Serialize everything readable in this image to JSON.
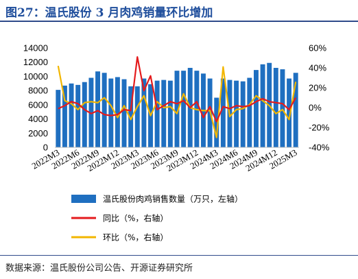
{
  "figure": {
    "title": "图27：温氏股份 3 月肉鸡销量环比增加",
    "source": "数据来源：温氏股份公司公告、开源证券研究所"
  },
  "colors": {
    "bar": "#1f6fc0",
    "yoy_line": "#e41a1c",
    "mom_line": "#f2b600",
    "rule": "#2e4a8a",
    "title": "#1f4e9c"
  },
  "chart_data": {
    "type": "bar",
    "categories": [
      "2022M3",
      "2022M4",
      "2022M5",
      "2022M6",
      "2022M7",
      "2022M8",
      "2022M9",
      "2022M10",
      "2022M11",
      "2022M12",
      "2023M1",
      "2023M2",
      "2023M3",
      "2023M4",
      "2023M5",
      "2023M6",
      "2023M7",
      "2023M8",
      "2023M9",
      "2023M10",
      "2023M11",
      "2023M12",
      "2024M1",
      "2024M2",
      "2024M3",
      "2024M4",
      "2024M5",
      "2024M6",
      "2024M7",
      "2024M8",
      "2024M9",
      "2024M10",
      "2024M11",
      "2024M12",
      "2025M1",
      "2025M2",
      "2025M3"
    ],
    "x_tick_labels": [
      "2022M3",
      "2022M6",
      "2022M9",
      "2022M12",
      "2023M3",
      "2023M6",
      "2023M9",
      "2023M12",
      "2024M3",
      "2024M6",
      "2024M9",
      "2024M12",
      "2025M3"
    ],
    "series": [
      {
        "name": "温氏股份肉鸡销售数量（万只，左轴）",
        "type": "bar",
        "axis": "left",
        "values": [
          8100,
          8700,
          9000,
          8800,
          9200,
          9800,
          10700,
          10500,
          9700,
          9900,
          9600,
          8600,
          8600,
          9700,
          8900,
          9400,
          9500,
          9400,
          10800,
          10800,
          11200,
          10800,
          10400,
          9700,
          7000,
          9700,
          9500,
          9400,
          9300,
          9800,
          10900,
          11700,
          11900,
          11200,
          11000,
          9700,
          10500
        ]
      },
      {
        "name": "同比（%，右轴）",
        "type": "line",
        "axis": "right",
        "values": [
          -1,
          2,
          6,
          4,
          -2,
          -6,
          -3,
          -7,
          -8,
          -7,
          -2,
          -3,
          51,
          17,
          32,
          -2,
          2,
          6,
          4,
          7,
          0,
          6,
          -10,
          1,
          -14,
          1,
          -1,
          2,
          1,
          2,
          6,
          9,
          6,
          5,
          4,
          -2,
          10
        ]
      },
      {
        "name": "环比（%，右轴）",
        "type": "line",
        "axis": "right",
        "values": [
          42,
          7,
          4,
          -2,
          5,
          6,
          5,
          10,
          2,
          -10,
          2,
          -12,
          1,
          12,
          -8,
          6,
          0,
          1,
          -6,
          14,
          0,
          -2,
          -3,
          -3,
          -30,
          41,
          -9,
          -2,
          -1,
          3,
          12,
          7,
          2,
          -6,
          -2,
          -12,
          26
        ]
      }
    ],
    "y_left": {
      "lim": [
        0,
        14000
      ],
      "ticks": [
        "0",
        "2000",
        "4000",
        "6000",
        "8000",
        "10000",
        "12000",
        "14000"
      ]
    },
    "y_right": {
      "lim": [
        -40,
        60
      ],
      "ticks": [
        "-40%",
        "-20%",
        "0%",
        "20%",
        "40%",
        "60%"
      ]
    },
    "legend": [
      "温氏股份肉鸡销售数量（万只，左轴）",
      "同比（%，右轴）",
      "环比（%，右轴）"
    ],
    "legend_position": "bottom",
    "grid": false
  }
}
